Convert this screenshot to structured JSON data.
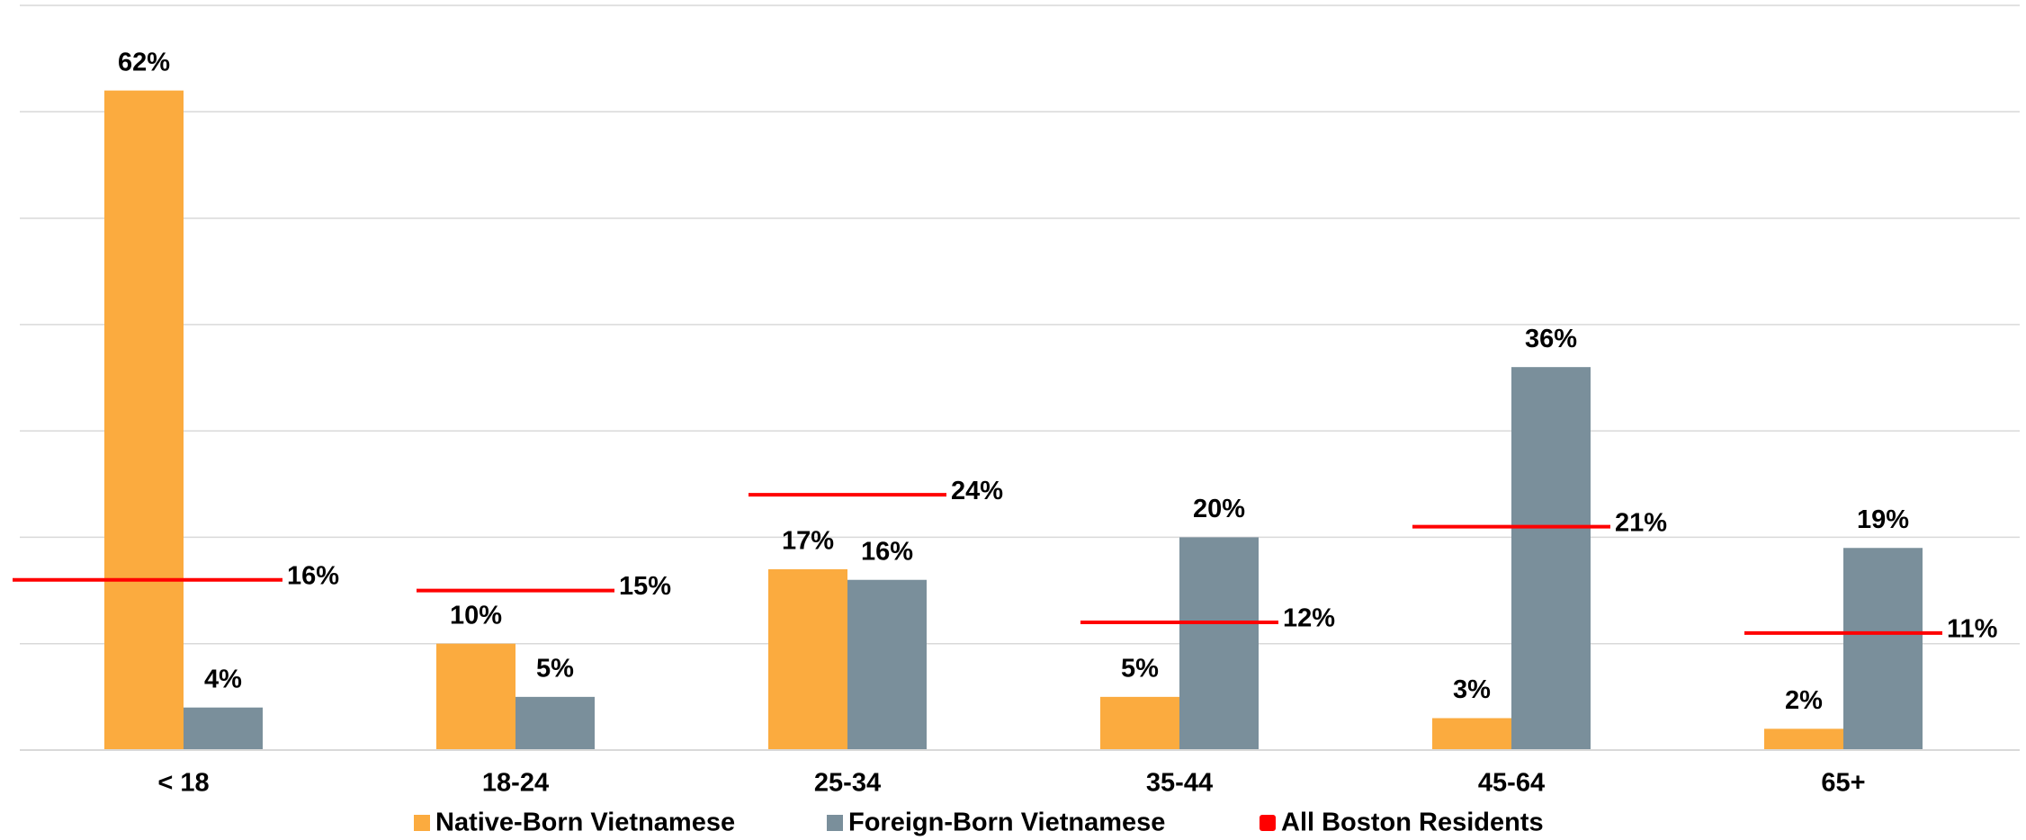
{
  "chart_data": {
    "type": "bar",
    "categories": [
      "< 18",
      "18-24",
      "25-34",
      "35-44",
      "45-64",
      "65+"
    ],
    "series": [
      {
        "name": "Native-Born Vietnamese",
        "color": "#fbab3f",
        "values": [
          62,
          10,
          17,
          5,
          3,
          2
        ],
        "value_labels": [
          "62%",
          "10%",
          "17%",
          "5%",
          "3%",
          "2%"
        ]
      },
      {
        "name": "Foreign-Born Vietnamese",
        "color": "#7a8f9b",
        "values": [
          4,
          5,
          16,
          20,
          36,
          19
        ],
        "value_labels": [
          "4%",
          "5%",
          "16%",
          "20%",
          "36%",
          "19%"
        ]
      },
      {
        "name": "All Boston Residents",
        "color": "#ff0000",
        "type": "marker",
        "values": [
          16,
          15,
          24,
          12,
          21,
          11
        ],
        "value_labels": [
          "16%",
          "15%",
          "24%",
          "12%",
          "21%",
          "11%"
        ]
      }
    ],
    "ylim": [
      0,
      70
    ],
    "yticks": [
      0,
      10,
      20,
      30,
      40,
      50,
      60,
      70
    ],
    "grid": true,
    "legend": "bottom"
  }
}
